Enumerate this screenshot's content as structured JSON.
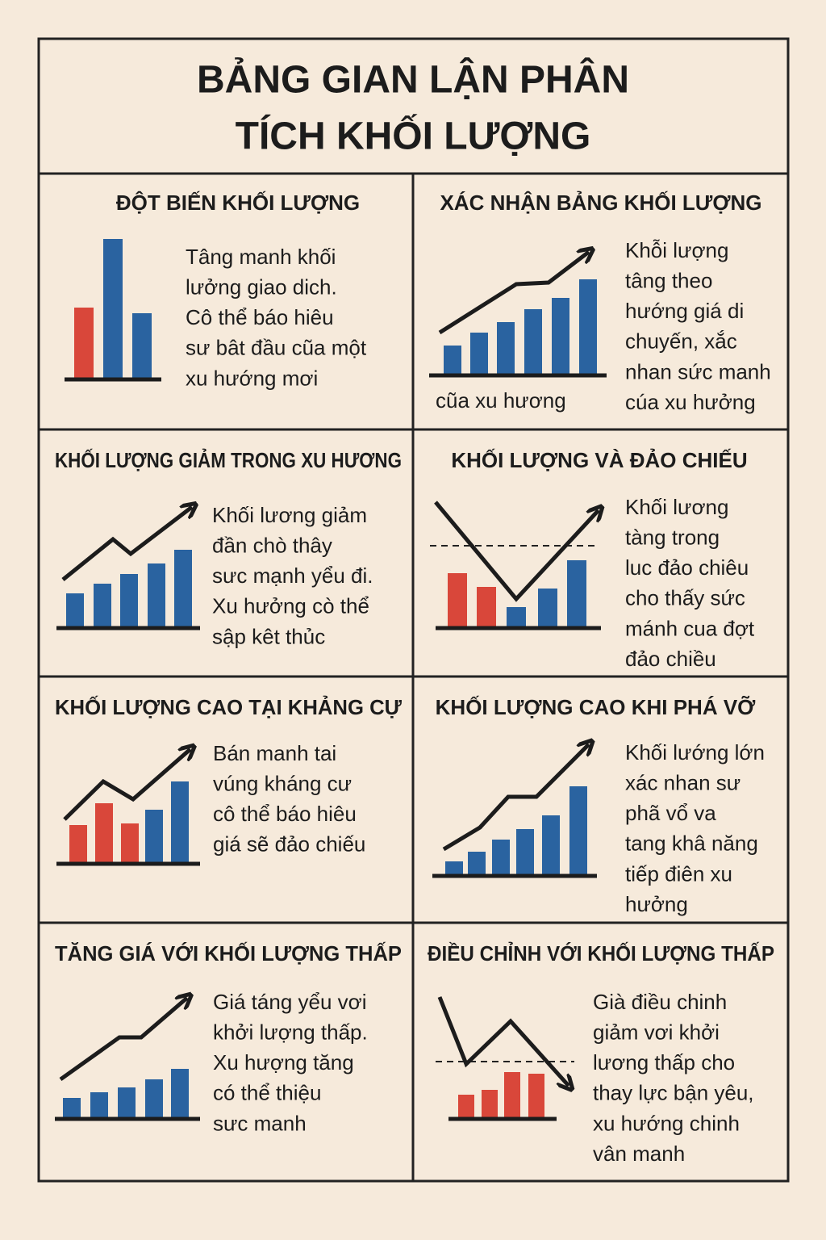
{
  "title": {
    "lines": [
      "BẢNG GIAN LẬN PHÂN",
      "TÍCH KHỐI LƯỢNG"
    ]
  },
  "panels": [
    {
      "heading": "ĐỘT BIẾN KHỐI LƯỢNG",
      "body": [
        "Tâng manh khối",
        "lưởng giao dich.",
        "Cô thể báo hiêu",
        "sư bât đầu cũa một",
        "xu hướng mơi"
      ]
    },
    {
      "heading": "XÁC NHẬN BẢNG KHỐI LƯỢNG",
      "body": [
        "Khỗi lượng",
        "tâng theo",
        "hướng giá di",
        "chuyến, xắc",
        "nhan sức manh",
        "cúa xu hưởng"
      ],
      "caption": "cũa xu hương"
    },
    {
      "heading": "KHỐI LƯỢNG GIẢM TRONG XU HƯƠNG",
      "body": [
        "Khối lương giảm",
        "đần chò thây",
        "sưc mạnh yểu đi.",
        "Xu hưởng cò thể",
        "sập kêt thủc"
      ]
    },
    {
      "heading": "KHỐI LƯỢNG VÀ ĐẢO CHIẾU",
      "body": [
        "Khối lương",
        "tàng trong",
        "luc đảo chiêu",
        "cho thấy sức",
        "mánh cua đợt",
        "đảo chiều"
      ]
    },
    {
      "heading": "KHỐI LƯỢNG CAO TẠI KHẢNG CỰ",
      "body": [
        "Bán manh tai",
        "vúng kháng cư",
        "cô thể báo hiêu",
        "giá sẽ đảo chiếu"
      ]
    },
    {
      "heading": "KHỐI LƯỢNG CAO KHI PHÁ VỠ",
      "body": [
        "Khối lướng lớn",
        "xác nhan sư",
        "phã vổ va",
        "tang khâ năng",
        "tiếp điên xu",
        "hưởng"
      ]
    },
    {
      "heading": "TĂNG GIÁ VỚI KHỐI LƯỢNG THẤP",
      "body": [
        "Giá táng yểu vơi",
        "khởi lượng thấp.",
        "Xu hượng tăng",
        "có thể thiệu",
        "sưc manh"
      ]
    },
    {
      "heading": "ĐIỀU CHỈNH VỚI KHỐI LƯỢNG THẤP",
      "body": [
        "Già điều chinh",
        "giảm vơi khởi",
        "lương thấp cho",
        "thay lực bận yêu,",
        "xu hướng chinh",
        "vân manh"
      ]
    }
  ]
}
